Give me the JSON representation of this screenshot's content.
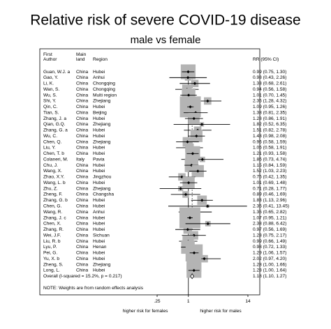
{
  "chart_data": {
    "type": "forest",
    "title": "Relative risk of severe COVID-19 disease",
    "subtitle": "male vs female",
    "columns": {
      "author": [
        "First",
        "Author"
      ],
      "country": [
        "Main",
        "land"
      ],
      "region": "Region",
      "rr": "RR (95% CI)"
    },
    "studies": [
      "Guan, W.J. a",
      "Gao, Y.",
      "Li, K.",
      "Wan, S.",
      "Wu, S.",
      "Shi, Y.",
      "Qin, C.",
      "Tian, S.",
      "Zhang, J. a",
      "Qian, G.Q.",
      "Zhang, G. a",
      "Wu, C.",
      "Chen, Q.",
      "Liu, Y.",
      "Chen, T. b",
      "Colaneri, M.",
      "Chu, J.",
      "Wang, X.",
      "Zhao, X.Y.",
      "Wang, L. b",
      "Zhu, Z.",
      "Zheng, F.",
      "Zhang, G. b",
      "Chen, G.",
      "Wang, R.",
      "Zhang, J. c",
      "Chen, X.",
      "Zhang, R.",
      "Wei, J.F.",
      "Liu, R. b",
      "Lyu, P.",
      "Pei, G.",
      "Yu, X. b",
      "Zheng, S.",
      "Long, L."
    ],
    "countries": [
      "China",
      "China",
      "China",
      "China",
      "China",
      "China",
      "China",
      "China",
      "China",
      "China",
      "China",
      "China",
      "China",
      "China",
      "China",
      "Italy",
      "China",
      "China",
      "China",
      "China",
      "China",
      "China",
      "China",
      "China",
      "China",
      "China",
      "China",
      "China",
      "China",
      "China",
      "China",
      "China",
      "China",
      "China",
      "China"
    ],
    "regions": [
      "Hubei",
      "Anhui",
      "Chongqing",
      "Chongqing",
      "Multi region",
      "Zhejiang",
      "Hubei",
      "Beijing",
      "Hubei",
      "Zhejiang",
      "Hubei",
      "Hubei",
      "Zhejiang",
      "Hubei",
      "Hubei",
      "Pavia",
      "Hubei",
      "Hubei",
      "Jingzhou",
      "Hubei",
      "Zhejiang",
      "Changsha",
      "Hubei",
      "Hubei",
      "Anhui",
      "Hubei",
      "Hubei",
      "Hubei",
      "Sichuan",
      "Hubei",
      "Henan",
      "Hubei",
      "Hubei",
      "Zhejiang",
      "Hubei"
    ],
    "values": [
      0.99,
      0.98,
      1.33,
      0.94,
      1.01,
      2.35,
      1.09,
      1.38,
      1.28,
      1.82,
      1.51,
      1.43,
      0.96,
      1.05,
      1.21,
      1.86,
      1.15,
      1.52,
      0.75,
      1.01,
      0.71,
      0.89,
      1.83,
      2.35,
      1.35,
      1.07,
      2.38,
      0.97,
      1.28,
      0.99,
      0.98,
      1.29,
      2.02,
      1.28,
      1.28
    ],
    "lower": [
      0.75,
      0.43,
      0.68,
      0.56,
      0.7,
      1.28,
      0.95,
      0.81,
      0.86,
      0.52,
      0.82,
      0.98,
      0.58,
      0.58,
      0.93,
      0.73,
      0.84,
      1.03,
      0.42,
      0.69,
      0.28,
      0.46,
      1.13,
      0.41,
      0.65,
      0.95,
      0.88,
      0.56,
      0.75,
      0.66,
      0.72,
      1.06,
      0.97,
      1.0,
      1.0
    ],
    "upper": [
      1.3,
      2.26,
      2.61,
      1.58,
      1.45,
      4.32,
      1.26,
      2.35,
      1.91,
      6.35,
      2.78,
      2.08,
      1.59,
      1.91,
      1.58,
      4.74,
      1.59,
      2.23,
      1.35,
      1.48,
      1.77,
      1.69,
      2.96,
      13.45,
      2.82,
      1.21,
      6.42,
      1.69,
      2.17,
      1.49,
      1.33,
      1.57,
      4.2,
      1.66,
      1.64
    ],
    "value_labels": [
      "0.99 (0.75, 1.30)",
      "0.98 (0.43, 2.26)",
      "1.33 (0.68, 2.61)",
      "0.94 (0.56, 1.58)",
      "1.01 (0.70, 1.45)",
      "2.35 (1.28, 4.32)",
      "1.09 (0.95, 1.26)",
      "1.38 (0.81, 2.35)",
      "1.28 (0.86, 1.91)",
      "1.82 (0.52, 6.35)",
      "1.51 (0.82, 2.78)",
      "1.43 (0.98, 2.08)",
      "0.96 (0.58, 1.59)",
      "1.05 (0.58, 1.91)",
      "1.21 (0.93, 1.58)",
      "1.86 (0.73, 4.74)",
      "1.15 (0.84, 1.59)",
      "1.52 (1.03, 2.23)",
      "0.75 (0.42, 1.35)",
      "1.01 (0.69, 1.48)",
      "0.71 (0.28, 1.77)",
      "0.89 (0.46, 1.69)",
      "1.83 (1.13, 2.96)",
      "2.35 (0.41, 13.45)",
      "1.35 (0.65, 2.82)",
      "1.07 (0.95, 1.21)",
      "2.38 (0.88, 6.42)",
      "0.97 (0.56, 1.69)",
      "1.28 (0.75, 2.17)",
      "0.99 (0.66, 1.49)",
      "0.98 (0.72, 1.33)",
      "1.29 (1.06, 1.57)",
      "2.02 (0.97, 4.20)",
      "1.28 (1.00, 1.66)",
      "1.28 (1.00, 1.64)"
    ],
    "weights": [
      6,
      1,
      1.5,
      2.5,
      5,
      1.5,
      12,
      2,
      3.5,
      0.5,
      1.5,
      4,
      2.5,
      2,
      6,
      0.8,
      5,
      4,
      1.5,
      4,
      0.7,
      1.2,
      2.5,
      0.3,
      1.2,
      12,
      0.8,
      2,
      2,
      3.5,
      5,
      8,
      1.5,
      6,
      6
    ],
    "overall": {
      "label": "Overall  (I-squared = 15.2%, p = 0.217)",
      "value": 1.18,
      "lower": 1.1,
      "upper": 1.27,
      "value_label": "1.18 (1.10, 1.27)"
    },
    "note": "NOTE: Weights are from random effects analysis",
    "log_x": true,
    "reference_line": 1,
    "xlim": [
      0.25,
      14
    ],
    "xticks": [
      {
        "value": 0.25,
        "label": ".25"
      },
      1,
      14
    ],
    "xlabels": [
      "higher risk for females",
      "higher risk for males"
    ],
    "box_color": "#b4b4b4"
  }
}
